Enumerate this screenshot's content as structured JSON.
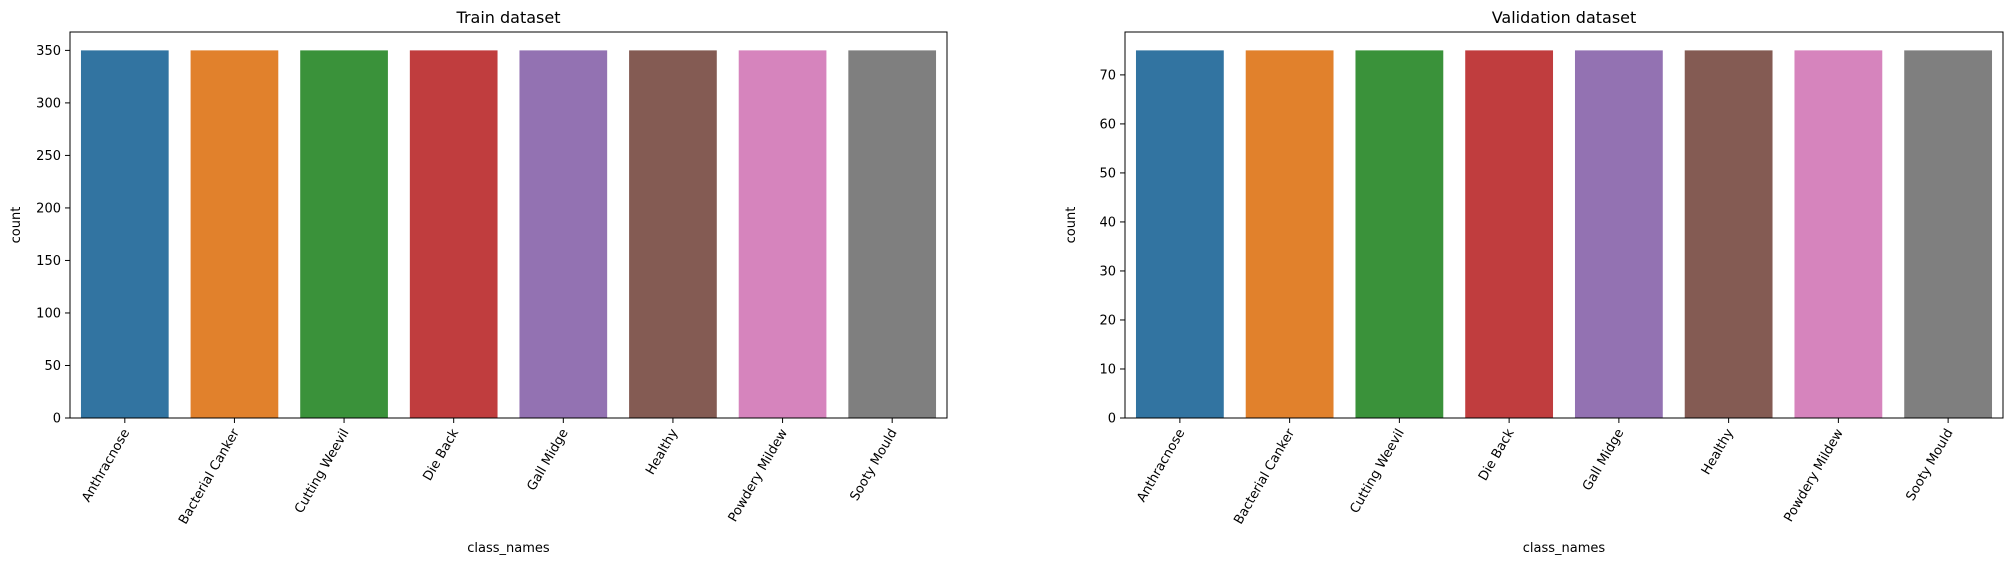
{
  "chart_data": [
    {
      "type": "bar",
      "title": "Train dataset",
      "xlabel": "class_names",
      "ylabel": "count",
      "categories": [
        "Anthracnose",
        "Bacterial Canker",
        "Cutting Weevil",
        "Die Back",
        "Gall Midge",
        "Healthy",
        "Powdery Mildew",
        "Sooty Mould"
      ],
      "values": [
        350,
        350,
        350,
        350,
        350,
        350,
        350,
        350
      ],
      "ylim": [
        0,
        367.5
      ],
      "yticks": [
        0,
        50,
        100,
        150,
        200,
        250,
        300,
        350
      ],
      "bar_colors": [
        "#3274a1",
        "#e1812c",
        "#3a923a",
        "#c03d3e",
        "#9372b2",
        "#845b53",
        "#d684bd",
        "#7f7f7f"
      ],
      "grid": false,
      "legend": "none"
    },
    {
      "type": "bar",
      "title": "Validation dataset",
      "xlabel": "class_names",
      "ylabel": "count",
      "categories": [
        "Anthracnose",
        "Bacterial Canker",
        "Cutting Weevil",
        "Die Back",
        "Gall Midge",
        "Healthy",
        "Powdery Mildew",
        "Sooty Mould"
      ],
      "values": [
        75,
        75,
        75,
        75,
        75,
        75,
        75,
        75
      ],
      "ylim": [
        0,
        78.75
      ],
      "yticks": [
        0,
        10,
        20,
        30,
        40,
        50,
        60,
        70
      ],
      "bar_colors": [
        "#3274a1",
        "#e1812c",
        "#3a923a",
        "#c03d3e",
        "#9372b2",
        "#845b53",
        "#d684bd",
        "#7f7f7f"
      ],
      "grid": false,
      "legend": "none"
    }
  ]
}
